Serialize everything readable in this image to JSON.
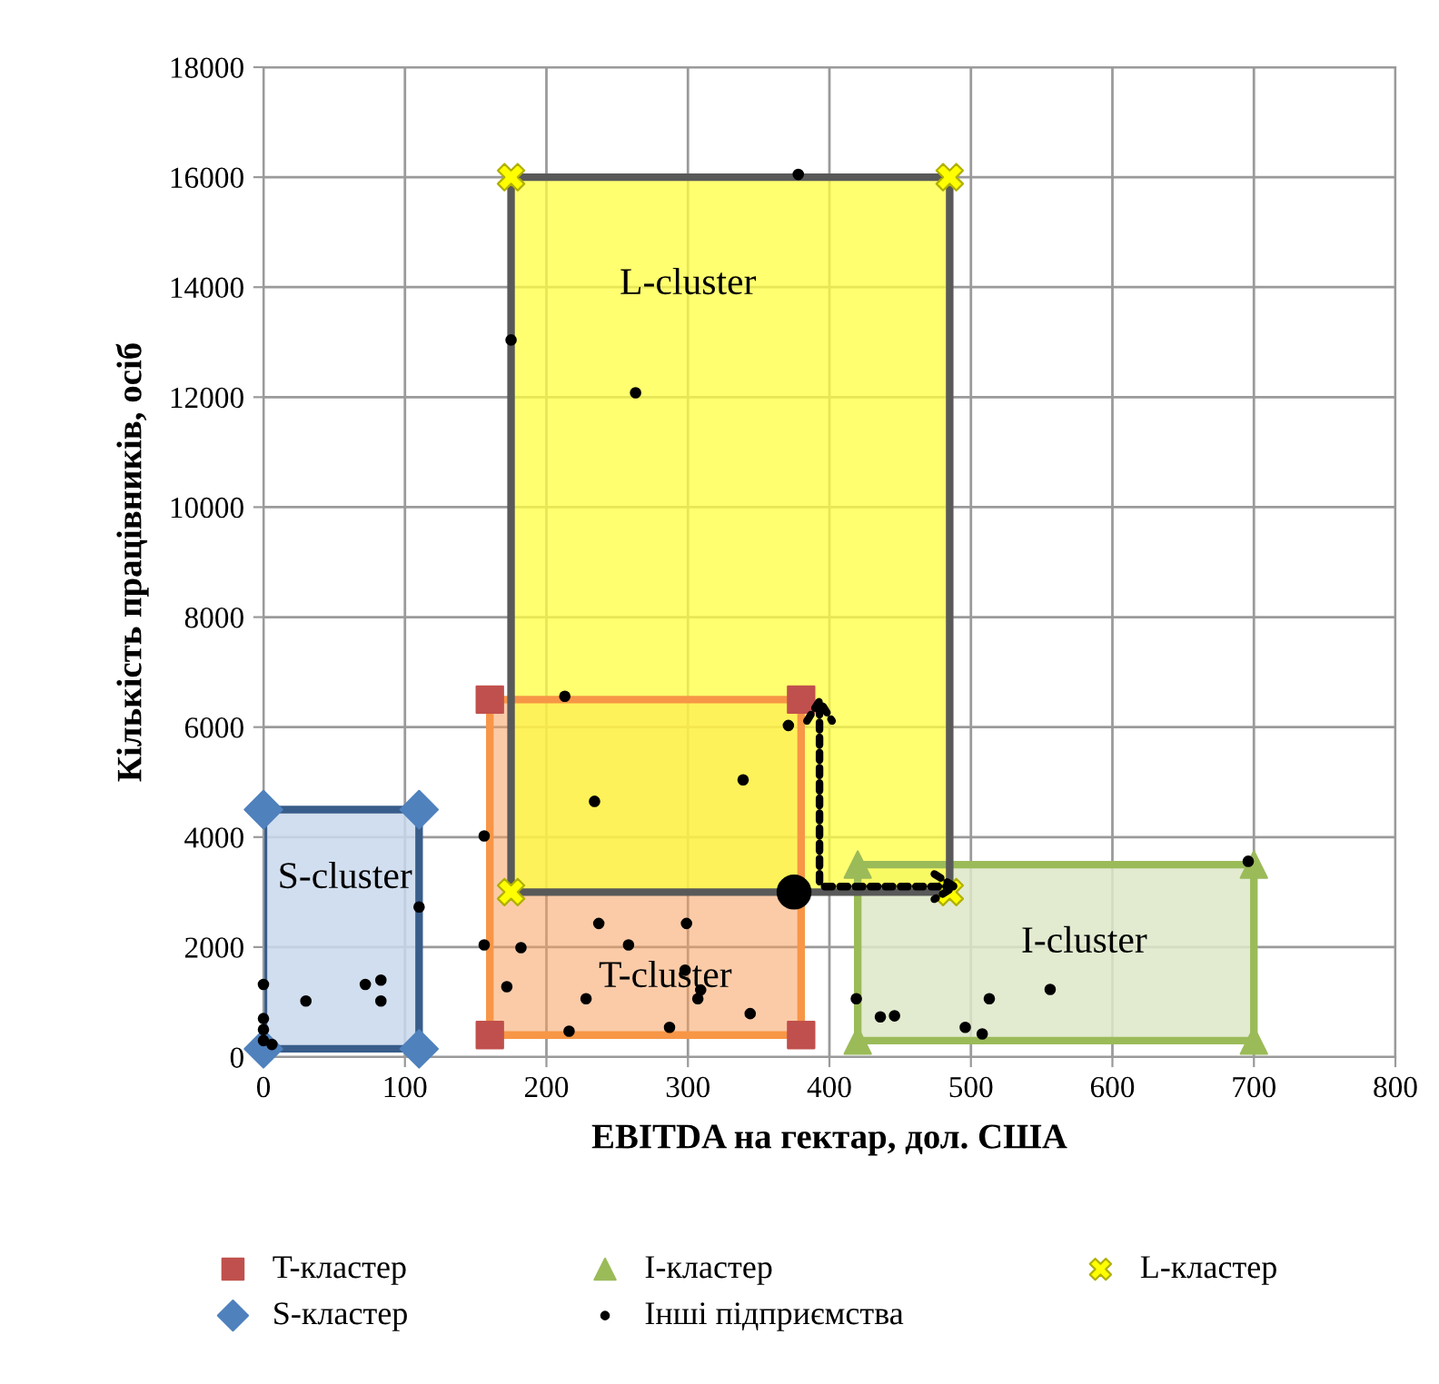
{
  "chart_data": {
    "type": "scatter",
    "xlabel": "EBITDA на гектар, дол. США",
    "ylabel": "Кількість працівників, осіб",
    "xlim": [
      0,
      800
    ],
    "xticks": [
      0,
      100,
      200,
      300,
      400,
      500,
      600,
      700,
      800
    ],
    "ylim": [
      0,
      18000
    ],
    "yticks": [
      0,
      2000,
      4000,
      6000,
      8000,
      10000,
      12000,
      14000,
      16000,
      18000
    ],
    "grid": true,
    "legend": "bottom",
    "annotations": [
      "L-cluster",
      "S-cluster",
      "T-cluster",
      "I-cluster"
    ],
    "series": [
      {
        "type": "area",
        "name": "T-кластер",
        "color": "#c0504d",
        "marker": "square",
        "x": [
          160,
          380,
          380,
          160
        ],
        "values": [
          6500,
          6500,
          400,
          400
        ]
      },
      {
        "type": "area",
        "name": "I-кластер",
        "color": "#9bbb59",
        "marker": "triangle",
        "x": [
          420,
          700,
          700,
          420
        ],
        "values": [
          3500,
          3500,
          300,
          300
        ]
      },
      {
        "type": "area",
        "name": "L-кластер",
        "color": "#ffff00",
        "marker": "cross",
        "x": [
          175,
          485,
          485,
          175
        ],
        "values": [
          16000,
          16000,
          3000,
          3000
        ]
      },
      {
        "type": "area",
        "name": "S-кластер",
        "color": "#4f81bd",
        "marker": "diamond",
        "x": [
          0,
          110,
          110,
          0
        ],
        "values": [
          4500,
          4500,
          150,
          150
        ]
      },
      {
        "color": "#000000",
        "marker": "circle",
        "x": [
          375
        ],
        "values": [
          3000
        ]
      },
      {
        "name": "Інші підприємства",
        "color": "#000000",
        "marker": "circle",
        "x": [
          378,
          175,
          263,
          213,
          371,
          339,
          234,
          156,
          110,
          237,
          299,
          156,
          182,
          258,
          0,
          72,
          83,
          83,
          30,
          172,
          228,
          298,
          309,
          307,
          344,
          287,
          216,
          0,
          0,
          0,
          6,
          696,
          419,
          436,
          446,
          496,
          513,
          556,
          508
        ],
        "values": [
          16050,
          13040,
          12080,
          6560,
          6030,
          5040,
          4650,
          4020,
          2730,
          2430,
          2430,
          2040,
          1990,
          2040,
          1320,
          1320,
          1400,
          1020,
          1020,
          1280,
          1060,
          1580,
          1220,
          1060,
          790,
          540,
          470,
          700,
          500,
          300,
          230,
          3560,
          1060,
          730,
          750,
          540,
          1060,
          1230,
          420
        ]
      }
    ]
  }
}
